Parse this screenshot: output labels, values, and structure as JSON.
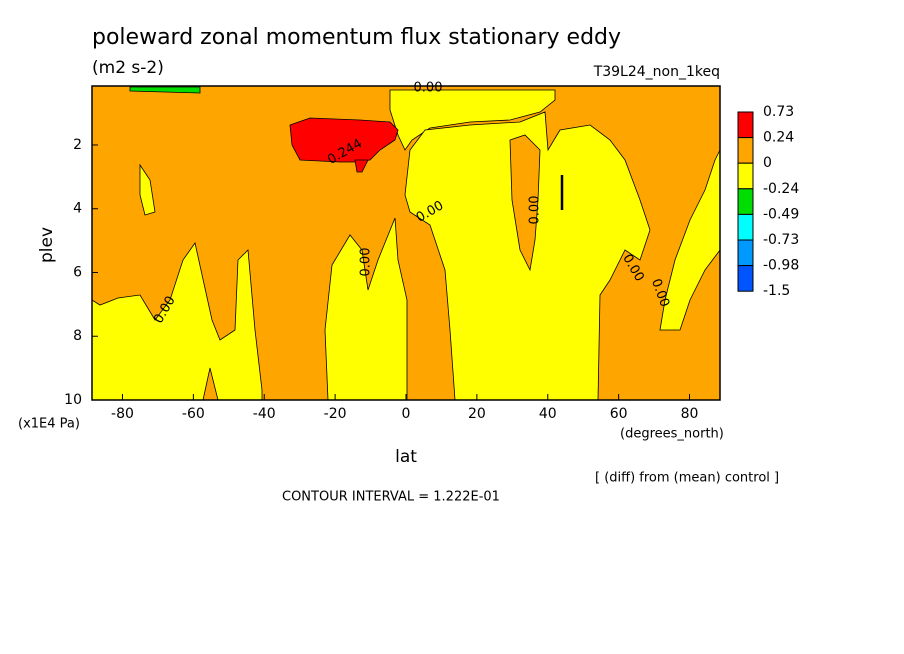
{
  "chart_data": {
    "type": "contour",
    "title": "poleward zonal momentum flux stationary eddy",
    "units": "(m2 s-2)",
    "run_label": "T39L24_non_1keq",
    "y_label": "plev",
    "y_unit": "(x1E4 Pa)",
    "x_label": "lat",
    "x_unit": "(degrees_north)",
    "note": "[ (diff) from (mean) control ]",
    "contour_interval": "CONTOUR INTERVAL = 1.222E-01",
    "xlim": [
      -88.6,
      88.6
    ],
    "xticks": [
      -80,
      -60,
      -40,
      -20,
      0,
      20,
      40,
      60,
      80
    ],
    "ylim": [
      10,
      0.15
    ],
    "yticks": [
      2,
      4,
      6,
      8,
      10
    ],
    "levels": [
      0.73,
      0.24,
      0,
      -0.24,
      -0.49,
      -0.73,
      -0.98,
      -1.5
    ],
    "colors": [
      "#ff0000",
      "#ffa500",
      "#ffff00",
      "#00dd00",
      "#00ffff",
      "#0099ff",
      "#0055ff"
    ],
    "contour_labels": [
      "0.00",
      "0.244",
      "0.00",
      "0.00",
      "0.00",
      "0.00",
      "0.00",
      "0.00"
    ]
  }
}
